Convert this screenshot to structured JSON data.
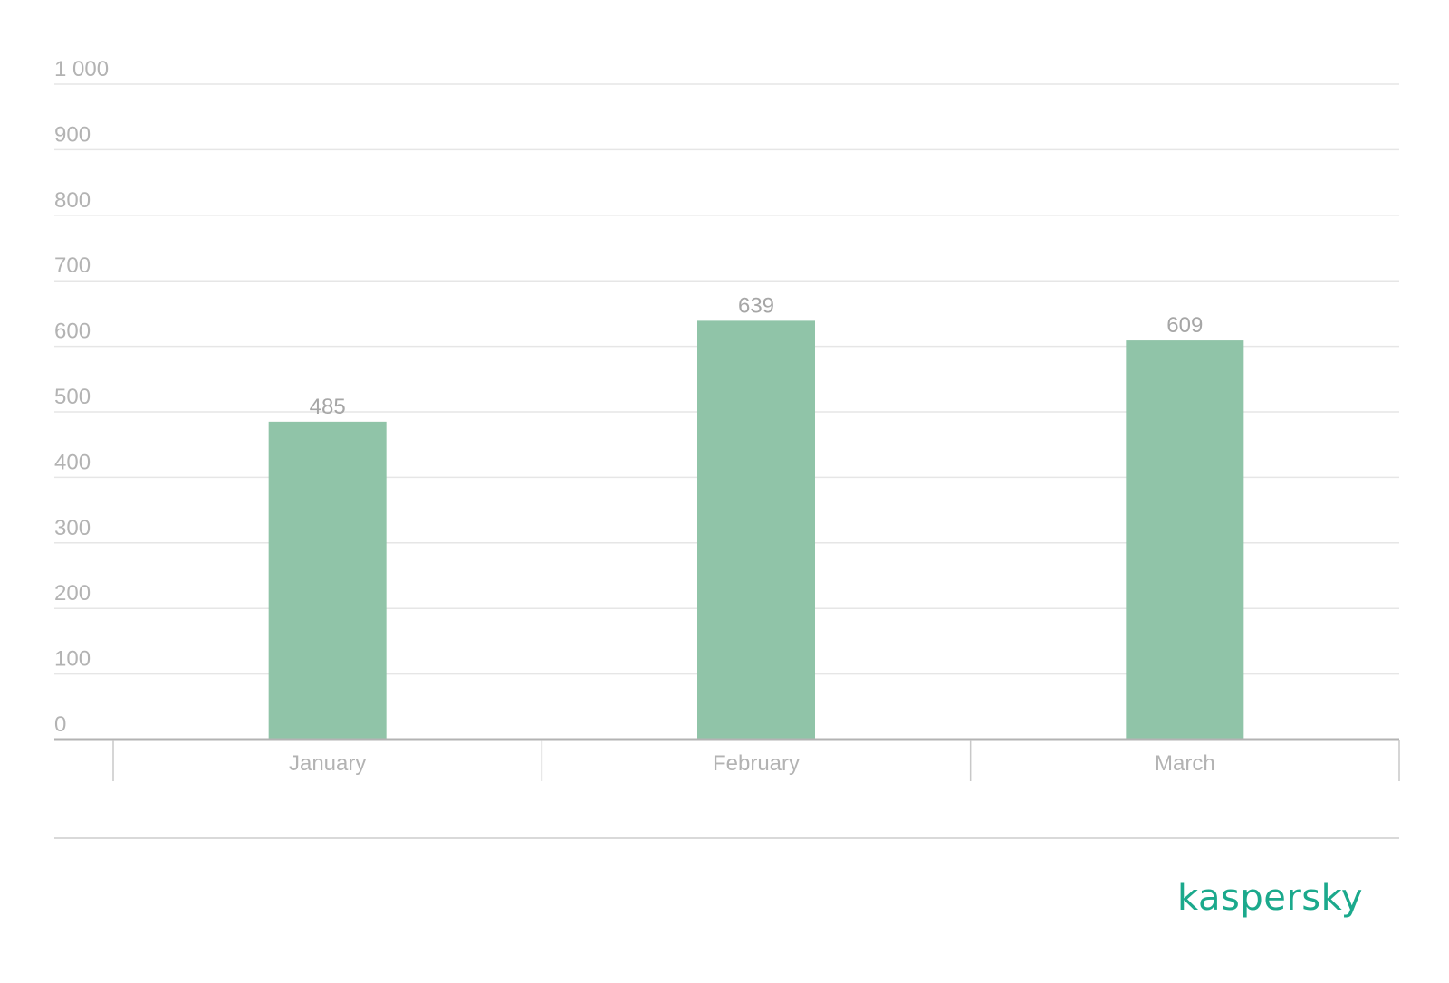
{
  "chart_data": {
    "type": "bar",
    "categories": [
      "January",
      "February",
      "March"
    ],
    "values": [
      485,
      639,
      609
    ],
    "ylim": [
      0,
      1000
    ],
    "yticks": [
      0,
      100,
      200,
      300,
      400,
      500,
      600,
      700,
      800,
      900,
      1000
    ],
    "ytick_labels": [
      "0",
      "100",
      "200",
      "300",
      "400",
      "500",
      "600",
      "700",
      "800",
      "900",
      "1 000"
    ],
    "title": "",
    "xlabel": "",
    "ylabel": "",
    "grid": true,
    "legend": "none",
    "data_labels": [
      "485",
      "639",
      "609"
    ],
    "bar_color": "#90c4a8",
    "gridline_color": "#e6e6e6",
    "axis_color": "#b3b3b3",
    "text_color": "#b3b3b3"
  },
  "brand": {
    "logo_text": "kaspersky",
    "logo_color": "#1ba98c"
  }
}
